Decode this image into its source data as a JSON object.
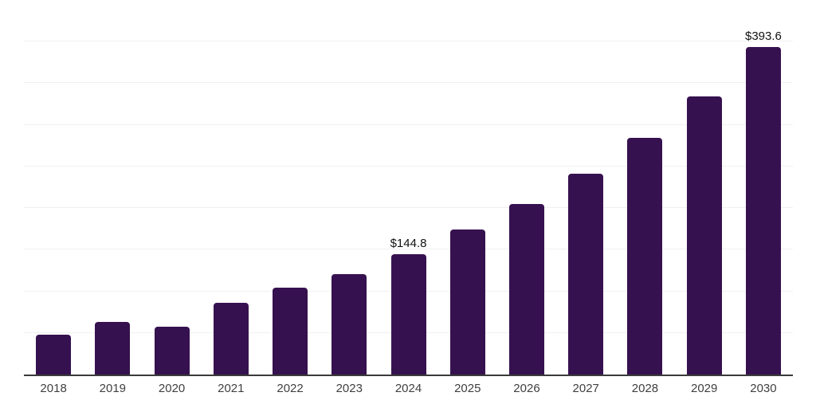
{
  "chart_data": {
    "type": "bar",
    "title": "",
    "xlabel": "",
    "ylabel": "",
    "categories": [
      "2018",
      "2019",
      "2020",
      "2021",
      "2022",
      "2023",
      "2024",
      "2025",
      "2026",
      "2027",
      "2028",
      "2029",
      "2030"
    ],
    "values": [
      47.9,
      63.2,
      57.5,
      86.2,
      104.4,
      120.7,
      144.8,
      174.3,
      205.0,
      241.4,
      284.5,
      334.3,
      393.6
    ],
    "data_labels": [
      "",
      "",
      "",
      "",
      "",
      "",
      "$144.8",
      "",
      "",
      "",
      "",
      "",
      "$393.6"
    ],
    "ylim": [
      0,
      450
    ],
    "gridline_step": 50,
    "grid": "on",
    "legend": "none",
    "colors": {
      "bar": "#36114F",
      "gridline": "#f0f0f0",
      "axis_line": "#3a3a3a",
      "tick_label": "#404040",
      "value_label": "#111111",
      "background": "#ffffff"
    }
  }
}
